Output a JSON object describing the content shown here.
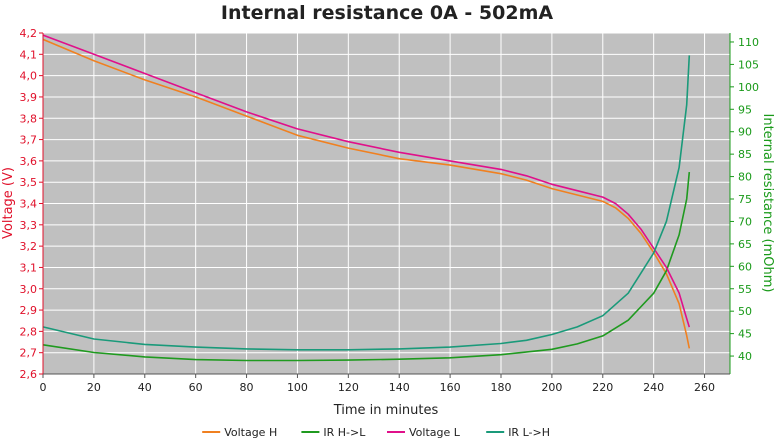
{
  "chart_data": {
    "type": "line",
    "title": "Internal resistance  0A - 502mA",
    "xlabel": "Time in minutes",
    "ylabel_left": "Voltage (V)",
    "ylabel_right": "Internal resistance (mOhm)",
    "xlim": [
      0,
      270
    ],
    "ylim_left": [
      2.6,
      4.2
    ],
    "ylim_right": [
      36,
      112
    ],
    "x_ticks": [
      0,
      20,
      40,
      60,
      80,
      100,
      120,
      140,
      160,
      180,
      200,
      220,
      240,
      260
    ],
    "y_left_ticks": [
      "2,6",
      "2,7",
      "2,8",
      "2,9",
      "3,0",
      "3,1",
      "3,2",
      "3,3",
      "3,4",
      "3,5",
      "3,6",
      "3,7",
      "3,8",
      "3,9",
      "4,0",
      "4,1",
      "4,2"
    ],
    "y_right_ticks": [
      "40",
      "45",
      "50",
      "55",
      "60",
      "65",
      "70",
      "75",
      "80",
      "85",
      "90",
      "95",
      "100",
      "105",
      "110"
    ],
    "grid": true,
    "legend_position": "bottom",
    "colors": {
      "plot_bg": "#c0c0c0",
      "grid": "#ffffff",
      "left_axis": "#e0102a",
      "right_axis": "#1a9a1a"
    },
    "series": [
      {
        "name": "Voltage H",
        "axis": "left",
        "color": "#f08020",
        "x": [
          0,
          20,
          40,
          60,
          80,
          100,
          120,
          140,
          160,
          180,
          190,
          200,
          210,
          220,
          225,
          230,
          235,
          240,
          245,
          250,
          253,
          254
        ],
        "values": [
          4.17,
          4.07,
          3.98,
          3.9,
          3.81,
          3.72,
          3.66,
          3.61,
          3.58,
          3.54,
          3.51,
          3.47,
          3.44,
          3.41,
          3.38,
          3.33,
          3.26,
          3.17,
          3.07,
          2.93,
          2.78,
          2.72
        ]
      },
      {
        "name": "IR H->L",
        "axis": "right",
        "color": "#1f9a1f",
        "x": [
          0,
          20,
          40,
          60,
          80,
          100,
          120,
          140,
          160,
          180,
          200,
          210,
          220,
          230,
          240,
          245,
          250,
          253,
          254
        ],
        "values": [
          42.5,
          40.8,
          39.8,
          39.2,
          39.0,
          39.0,
          39.1,
          39.3,
          39.6,
          40.3,
          41.5,
          42.7,
          44.5,
          48.0,
          54.0,
          59.0,
          67.0,
          75.0,
          81.0
        ]
      },
      {
        "name": "Voltage L",
        "axis": "left",
        "color": "#e0108a",
        "x": [
          0,
          20,
          40,
          60,
          80,
          100,
          120,
          140,
          160,
          180,
          190,
          200,
          210,
          220,
          225,
          230,
          235,
          240,
          245,
          250,
          253,
          254
        ],
        "values": [
          4.19,
          4.1,
          4.01,
          3.92,
          3.83,
          3.75,
          3.69,
          3.64,
          3.6,
          3.56,
          3.53,
          3.49,
          3.46,
          3.43,
          3.4,
          3.35,
          3.28,
          3.19,
          3.1,
          2.98,
          2.86,
          2.82
        ]
      },
      {
        "name": "IR L->H",
        "axis": "right",
        "color": "#1a9a7a",
        "x": [
          0,
          20,
          40,
          60,
          80,
          100,
          120,
          140,
          160,
          180,
          190,
          200,
          210,
          220,
          230,
          240,
          245,
          250,
          253,
          254
        ],
        "values": [
          46.5,
          43.8,
          42.6,
          42.0,
          41.6,
          41.4,
          41.4,
          41.6,
          42.0,
          42.8,
          43.5,
          44.8,
          46.5,
          49.0,
          54.0,
          63.0,
          70.0,
          82.0,
          96.0,
          107.0
        ]
      }
    ]
  }
}
